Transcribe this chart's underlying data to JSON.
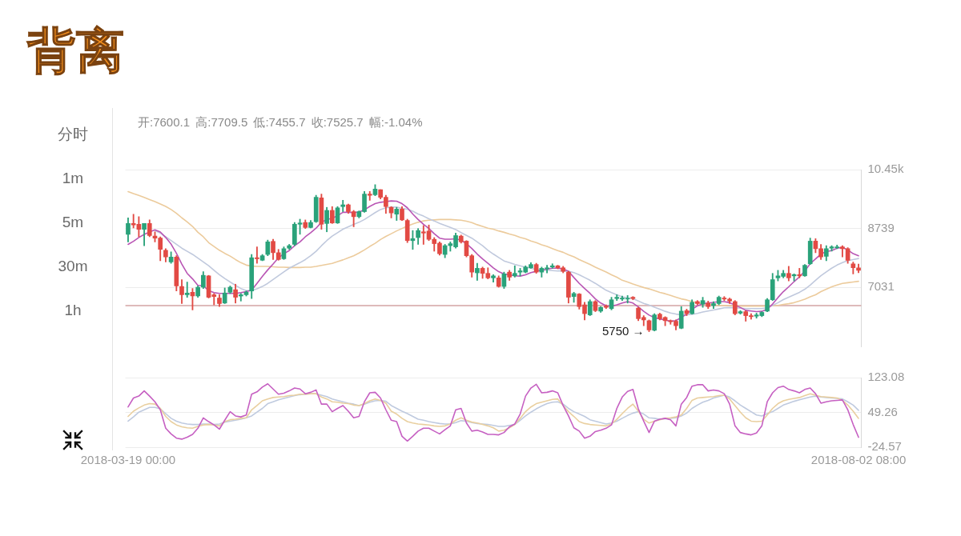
{
  "chart_data": [
    {
      "type": "candlestick",
      "title": "背离",
      "subtitle": "开:7600.1 高:7709.5 低:7455.7 收:7525.7 幅:-1.04%",
      "annotations": [
        "5750 →"
      ],
      "categories": [
        "2018-03-19 00:00",
        null,
        null,
        null,
        null,
        null,
        null,
        null,
        null,
        null,
        null,
        null,
        null,
        null,
        null,
        null,
        null,
        null,
        null,
        null,
        null,
        null,
        null,
        null,
        null,
        null,
        null,
        null,
        null,
        null,
        null,
        null,
        null,
        null,
        null,
        null,
        null,
        null,
        null,
        null,
        null,
        null,
        null,
        null,
        null,
        null,
        null,
        null,
        null,
        null,
        null,
        null,
        null,
        null,
        null,
        null,
        null,
        null,
        null,
        null,
        null,
        null,
        null,
        null,
        null,
        null,
        null,
        null,
        null,
        null,
        null,
        null,
        null,
        null,
        null,
        null,
        null,
        null,
        null,
        null,
        null,
        null,
        null,
        null,
        null,
        null,
        null,
        null,
        null,
        null,
        null,
        null,
        null,
        null,
        null,
        null,
        null,
        null,
        null,
        null,
        null,
        null,
        null,
        null,
        null,
        null,
        null,
        null,
        null,
        null,
        null,
        null,
        null,
        null,
        null,
        null,
        null,
        null,
        null,
        null,
        null,
        null,
        null,
        null,
        null,
        null,
        null,
        null,
        null,
        null,
        null,
        null,
        null,
        null,
        null,
        null,
        "2018-08-02 08:00"
      ],
      "ohlc": [
        [
          8572,
          9046,
          8353,
          8885
        ],
        [
          8885,
          9155,
          8754,
          8842
        ],
        [
          8864,
          9083,
          8499,
          8717
        ],
        [
          8717,
          8885,
          8243,
          8885
        ],
        [
          8885,
          8988,
          8499,
          8535
        ],
        [
          8520,
          8644,
          8353,
          8462
        ],
        [
          8462,
          8499,
          7805,
          8134
        ],
        [
          8112,
          8155,
          7769,
          7915
        ],
        [
          7769,
          8061,
          7732,
          7915
        ],
        [
          7915,
          7951,
          6929,
          7075
        ],
        [
          7060,
          7258,
          6564,
          6820
        ],
        [
          6820,
          7185,
          6747,
          6871
        ],
        [
          6893,
          7002,
          6382,
          6783
        ],
        [
          6783,
          7075,
          6747,
          7038
        ],
        [
          7038,
          7491,
          7002,
          7382
        ],
        [
          7367,
          7382,
          6725,
          6747
        ],
        [
          6820,
          6856,
          6528,
          6768
        ],
        [
          6725,
          6820,
          6476,
          6564
        ],
        [
          6579,
          7017,
          6564,
          6871
        ],
        [
          6893,
          7075,
          6856,
          7038
        ],
        [
          6966,
          7126,
          6579,
          6747
        ],
        [
          6783,
          6856,
          6637,
          6820
        ],
        [
          6820,
          6929,
          6783,
          6893
        ],
        [
          6929,
          7988,
          6710,
          7893
        ],
        [
          7893,
          8207,
          7732,
          7863
        ],
        [
          7820,
          7988,
          7805,
          7951
        ],
        [
          7988,
          8404,
          7951,
          8353
        ],
        [
          8367,
          8426,
          7842,
          8039
        ],
        [
          8039,
          8134,
          7820,
          7842
        ],
        [
          7863,
          8207,
          7842,
          8155
        ],
        [
          8170,
          8280,
          8134,
          8243
        ],
        [
          8280,
          8915,
          8243,
          8864
        ],
        [
          8864,
          9010,
          8572,
          8900
        ],
        [
          8915,
          8988,
          8739,
          8769
        ],
        [
          8769,
          8973,
          8754,
          8915
        ],
        [
          8937,
          9703,
          8915,
          9645
        ],
        [
          9630,
          9740,
          8717,
          8864
        ],
        [
          8885,
          9353,
          8644,
          9265
        ],
        [
          9265,
          9375,
          8885,
          8900
        ],
        [
          8900,
          9375,
          8885,
          9338
        ],
        [
          9375,
          9557,
          9229,
          9426
        ],
        [
          9426,
          9448,
          9177,
          9229
        ],
        [
          9229,
          9265,
          8790,
          9083
        ],
        [
          9083,
          9250,
          9046,
          9229
        ],
        [
          9229,
          9812,
          9207,
          9740
        ],
        [
          9740,
          9812,
          9557,
          9703
        ],
        [
          9718,
          10010,
          9688,
          9885
        ],
        [
          9864,
          9864,
          9594,
          9645
        ],
        [
          9645,
          9703,
          9177,
          9375
        ],
        [
          9353,
          9375,
          9046,
          9192
        ],
        [
          9155,
          9353,
          8973,
          9302
        ],
        [
          9302,
          9375,
          8973,
          8988
        ],
        [
          8973,
          9010,
          8331,
          8389
        ],
        [
          8389,
          8681,
          8134,
          8447
        ],
        [
          8477,
          8739,
          8280,
          8681
        ],
        [
          8644,
          8827,
          8280,
          8608
        ],
        [
          8666,
          8842,
          8389,
          8426
        ],
        [
          8426,
          8477,
          8082,
          8301
        ],
        [
          8316,
          8353,
          7966,
          8009
        ],
        [
          7988,
          8280,
          7893,
          8243
        ],
        [
          8243,
          8353,
          8082,
          8301
        ],
        [
          8207,
          8608,
          8170,
          8535
        ],
        [
          8520,
          8550,
          8316,
          8353
        ],
        [
          8374,
          8389,
          7915,
          7951
        ],
        [
          7951,
          7988,
          7330,
          7476
        ],
        [
          7455,
          7732,
          7236,
          7586
        ],
        [
          7586,
          7622,
          7294,
          7440
        ],
        [
          7440,
          7601,
          7279,
          7309
        ],
        [
          7309,
          7404,
          7185,
          7367
        ],
        [
          7309,
          7367,
          7038,
          7060
        ],
        [
          7060,
          7476,
          7002,
          7425
        ],
        [
          7476,
          7528,
          7236,
          7330
        ],
        [
          7367,
          7659,
          7330,
          7440
        ],
        [
          7476,
          7586,
          7367,
          7513
        ],
        [
          7476,
          7659,
          7455,
          7622
        ],
        [
          7601,
          7747,
          7586,
          7696
        ],
        [
          7696,
          7732,
          7440,
          7476
        ],
        [
          7476,
          7622,
          7330,
          7586
        ],
        [
          7571,
          7674,
          7455,
          7601
        ],
        [
          7622,
          7717,
          7586,
          7659
        ],
        [
          7659,
          7674,
          7571,
          7601
        ],
        [
          7601,
          7644,
          7455,
          7498
        ],
        [
          7476,
          7498,
          6579,
          6747
        ],
        [
          6768,
          6893,
          6600,
          6856
        ],
        [
          6841,
          6856,
          6403,
          6476
        ],
        [
          6528,
          6600,
          6090,
          6272
        ],
        [
          6236,
          6674,
          6214,
          6622
        ],
        [
          6622,
          6652,
          6330,
          6360
        ],
        [
          6345,
          6476,
          6309,
          6455
        ],
        [
          6491,
          6528,
          6418,
          6455
        ],
        [
          6418,
          6747,
          6382,
          6674
        ],
        [
          6710,
          6820,
          6652,
          6747
        ],
        [
          6695,
          6783,
          6652,
          6725
        ],
        [
          6695,
          6798,
          6579,
          6710
        ],
        [
          6747,
          6768,
          6674,
          6710
        ],
        [
          6433,
          6455,
          6068,
          6126
        ],
        [
          6163,
          6214,
          5922,
          6090
        ],
        [
          6068,
          6090,
          5750,
          5800
        ],
        [
          5790,
          6272,
          5770,
          6236
        ],
        [
          6257,
          6287,
          6090,
          6126
        ],
        [
          6163,
          6184,
          5922,
          6068
        ],
        [
          6068,
          6090,
          5965,
          6038
        ],
        [
          6053,
          6090,
          5800,
          5922
        ],
        [
          5849,
          6476,
          5834,
          6345
        ],
        [
          6360,
          6403,
          6214,
          6272
        ],
        [
          6272,
          6674,
          6257,
          6600
        ],
        [
          6622,
          6652,
          6528,
          6564
        ],
        [
          6549,
          6747,
          6455,
          6652
        ],
        [
          6579,
          6637,
          6418,
          6476
        ],
        [
          6506,
          6622,
          6418,
          6564
        ],
        [
          6564,
          6783,
          6528,
          6747
        ],
        [
          6725,
          6768,
          6652,
          6695
        ],
        [
          6695,
          6725,
          6564,
          6637
        ],
        [
          6622,
          6652,
          6236,
          6272
        ],
        [
          6287,
          6360,
          6257,
          6330
        ],
        [
          6330,
          6360,
          6053,
          6214
        ],
        [
          6214,
          6272,
          6111,
          6184
        ],
        [
          6199,
          6287,
          6141,
          6236
        ],
        [
          6214,
          6330,
          6184,
          6309
        ],
        [
          6345,
          6710,
          6330,
          6674
        ],
        [
          6674,
          7440,
          6652,
          7258
        ],
        [
          7309,
          7528,
          7221,
          7367
        ],
        [
          7352,
          7528,
          7309,
          7440
        ],
        [
          7440,
          7644,
          7221,
          7309
        ],
        [
          7367,
          7425,
          7221,
          7404
        ],
        [
          7404,
          7586,
          7309,
          7367
        ],
        [
          7367,
          7696,
          7352,
          7674
        ],
        [
          7717,
          8462,
          7696,
          8374
        ],
        [
          8374,
          8447,
          8039,
          8155
        ],
        [
          8155,
          8280,
          7842,
          7915
        ],
        [
          7936,
          8243,
          7805,
          8155
        ],
        [
          8170,
          8243,
          8082,
          8207
        ],
        [
          8185,
          8258,
          8155,
          8207
        ],
        [
          8207,
          8243,
          7915,
          8155
        ],
        [
          8155,
          8185,
          7732,
          7820
        ],
        [
          7717,
          7769,
          7425,
          7605
        ],
        [
          7600.1,
          7709.5,
          7455.7,
          7525.7
        ]
      ],
      "colors": [
        "#2aa27a",
        "#e24a44",
        "#e24a44",
        "#2aa27a",
        "#e24a44",
        "#e24a44",
        "#e24a44",
        "#e24a44",
        "#2aa27a",
        "#e24a44",
        "#e24a44",
        "#2aa27a",
        "#e24a44",
        "#2aa27a",
        "#2aa27a",
        "#e24a44",
        "#e24a44",
        "#e24a44",
        "#2aa27a",
        "#2aa27a",
        "#e24a44",
        "#2aa27a",
        "#2aa27a",
        "#2aa27a",
        "#e24a44",
        "#2aa27a",
        "#2aa27a",
        "#e24a44",
        "#e24a44",
        "#2aa27a",
        "#2aa27a",
        "#2aa27a",
        "#2aa27a",
        "#e24a44",
        "#2aa27a",
        "#2aa27a",
        "#e24a44",
        "#2aa27a",
        "#e24a44",
        "#2aa27a",
        "#2aa27a",
        "#e24a44",
        "#e24a44",
        "#2aa27a",
        "#2aa27a",
        "#e24a44",
        "#2aa27a",
        "#e24a44",
        "#e24a44",
        "#e24a44",
        "#2aa27a",
        "#e24a44",
        "#e24a44",
        "#2aa27a",
        "#2aa27a",
        "#e24a44",
        "#e24a44",
        "#e24a44",
        "#e24a44",
        "#2aa27a",
        "#2aa27a",
        "#2aa27a",
        "#e24a44",
        "#e24a44",
        "#e24a44",
        "#2aa27a",
        "#e24a44",
        "#e24a44",
        "#2aa27a",
        "#e24a44",
        "#2aa27a",
        "#e24a44",
        "#2aa27a",
        "#2aa27a",
        "#2aa27a",
        "#2aa27a",
        "#e24a44",
        "#2aa27a",
        "#2aa27a",
        "#2aa27a",
        "#e24a44",
        "#e24a44",
        "#e24a44",
        "#2aa27a",
        "#e24a44",
        "#e24a44",
        "#2aa27a",
        "#e24a44",
        "#2aa27a",
        "#e24a44",
        "#2aa27a",
        "#2aa27a",
        "#2aa27a",
        "#2aa27a",
        "#e24a44",
        "#e24a44",
        "#e24a44",
        "#e24a44",
        "#2aa27a",
        "#e24a44",
        "#e24a44",
        "#e24a44",
        "#e24a44",
        "#2aa27a",
        "#e24a44",
        "#2aa27a",
        "#e24a44",
        "#2aa27a",
        "#e24a44",
        "#2aa27a",
        "#2aa27a",
        "#e24a44",
        "#e24a44",
        "#e24a44",
        "#2aa27a",
        "#e24a44",
        "#e24a44",
        "#2aa27a",
        "#2aa27a",
        "#2aa27a",
        "#2aa27a",
        "#2aa27a",
        "#2aa27a",
        "#e24a44",
        "#2aa27a",
        "#e24a44",
        "#2aa27a",
        "#2aa27a",
        "#e24a44",
        "#e24a44",
        "#2aa27a",
        "#2aa27a",
        "#2aa27a",
        "#e24a44",
        "#e24a44",
        "#e24a44",
        "#e24a44"
      ],
      "series": [
        {
          "type": "line",
          "color": "#b955b4",
          "values": [
            8280,
            8370,
            8480,
            8570,
            8640,
            8700,
            8640,
            8480,
            8290,
            8020,
            7710,
            7440,
            7280,
            7090,
            7080,
            6940,
            6880,
            6860,
            6860,
            6860,
            6860,
            6880,
            6910,
            6950,
            7150,
            7350,
            7540,
            7710,
            7890,
            8010,
            8100,
            8240,
            8350,
            8500,
            8620,
            8750,
            8920,
            9000,
            9040,
            9110,
            9210,
            9210,
            9200,
            9220,
            9280,
            9380,
            9460,
            9500,
            9520,
            9540,
            9530,
            9460,
            9340,
            9160,
            9000,
            8860,
            8740,
            8590,
            8460,
            8430,
            8430,
            8440,
            8400,
            8300,
            8160,
            8000,
            7860,
            7730,
            7600,
            7490,
            7420,
            7400,
            7370,
            7360,
            7400,
            7460,
            7500,
            7530,
            7560,
            7590,
            7590,
            7570,
            7500,
            7320,
            7150,
            7000,
            6860,
            6700,
            6580,
            6500,
            6490,
            6530,
            6580,
            6620,
            6580,
            6470,
            6340,
            6230,
            6160,
            6120,
            6090,
            6050,
            6070,
            6160,
            6260,
            6400,
            6500,
            6560,
            6580,
            6600,
            6620,
            6620,
            6590,
            6520,
            6450,
            6370,
            6350,
            6330,
            6340,
            6400,
            6550,
            6740,
            6910,
            7050,
            7200,
            7340,
            7510,
            7720,
            7860,
            8000,
            8070,
            8100,
            8170,
            8190,
            8120,
            8010,
            7950
          ]
        },
        {
          "type": "line",
          "color": "#c0c9dd",
          "values": [
            null,
            null,
            null,
            null,
            null,
            8680,
            8610,
            8500,
            8390,
            8280,
            8170,
            8080,
            7990,
            7880,
            7770,
            7660,
            7530,
            7400,
            7290,
            7190,
            7090,
            7000,
            6940,
            6940,
            6990,
            7060,
            7150,
            7260,
            7370,
            7480,
            7590,
            7670,
            7750,
            7840,
            7950,
            8080,
            8240,
            8390,
            8520,
            8620,
            8720,
            8790,
            8860,
            8920,
            9000,
            9100,
            9200,
            9290,
            9340,
            9360,
            9360,
            9320,
            9300,
            9240,
            9160,
            9100,
            9020,
            8960,
            8890,
            8830,
            8770,
            8710,
            8620,
            8540,
            8460,
            8350,
            8240,
            8110,
            8000,
            7900,
            7800,
            7750,
            7700,
            7660,
            7620,
            7590,
            7550,
            7540,
            7530,
            7520,
            7510,
            7510,
            7500,
            7460,
            7400,
            7320,
            7240,
            7150,
            7050,
            6950,
            6880,
            6820,
            6760,
            6730,
            6710,
            6640,
            6570,
            6520,
            6460,
            6400,
            6340,
            6290,
            6260,
            6240,
            6240,
            6250,
            6280,
            6320,
            6350,
            6380,
            6410,
            6440,
            6450,
            6440,
            6430,
            6420,
            6420,
            6420,
            6420,
            6440,
            6510,
            6590,
            6680,
            6750,
            6820,
            6890,
            6980,
            7100,
            7240,
            7370,
            7480,
            7590,
            7680,
            7750,
            7810,
            7840,
            7870
          ]
        },
        {
          "type": "line",
          "color": "#eccb9c",
          "values": [
            9810,
            9750,
            9700,
            9640,
            9580,
            9520,
            9450,
            9380,
            9290,
            9180,
            9050,
            8930,
            8800,
            8630,
            8500,
            8330,
            8220,
            8110,
            8020,
            7940,
            7840,
            7750,
            7680,
            7650,
            7640,
            7640,
            7640,
            7630,
            7620,
            7620,
            7610,
            7610,
            7610,
            7620,
            7620,
            7640,
            7670,
            7700,
            7730,
            7780,
            7830,
            7890,
            7950,
            8030,
            8120,
            8220,
            8310,
            8420,
            8510,
            8590,
            8670,
            8740,
            8810,
            8870,
            8920,
            8960,
            8980,
            8990,
            9000,
            9000,
            9000,
            8990,
            8980,
            8950,
            8910,
            8850,
            8800,
            8750,
            8720,
            8670,
            8630,
            8580,
            8540,
            8480,
            8440,
            8380,
            8330,
            8270,
            8220,
            8160,
            8100,
            8050,
            7980,
            7920,
            7840,
            7770,
            7700,
            7620,
            7550,
            7480,
            7400,
            7330,
            7240,
            7190,
            7130,
            7080,
            7030,
            6990,
            6940,
            6890,
            6850,
            6800,
            6750,
            6700,
            6670,
            6620,
            6590,
            6560,
            6540,
            6530,
            6510,
            6510,
            6500,
            6490,
            6490,
            6490,
            6490,
            6490,
            6490,
            6490,
            6500,
            6510,
            6540,
            6560,
            6590,
            6640,
            6690,
            6760,
            6820,
            6910,
            6980,
            7050,
            7100,
            7150,
            7170,
            7190,
            7210
          ]
        }
      ],
      "ylim": [
        5323,
        10447
      ],
      "yticks": [
        {
          "value": 10447,
          "label": "10.45k"
        },
        8739,
        7031
      ],
      "grid": "y",
      "tick_labels": "y",
      "ref_lines": [
        {
          "axis": "y",
          "value": 6506,
          "color": "#d3a3a3"
        }
      ]
    },
    {
      "type": "line",
      "categories": [
        "2018-03-19 00:00",
        null,
        null,
        null,
        null,
        null,
        null,
        null,
        null,
        null,
        null,
        null,
        null,
        null,
        null,
        null,
        null,
        null,
        null,
        null,
        null,
        null,
        null,
        null,
        null,
        null,
        null,
        null,
        null,
        null,
        null,
        null,
        null,
        null,
        null,
        null,
        null,
        null,
        null,
        null,
        null,
        null,
        null,
        null,
        null,
        null,
        null,
        null,
        null,
        null,
        null,
        null,
        null,
        null,
        null,
        null,
        null,
        null,
        null,
        null,
        null,
        null,
        null,
        null,
        null,
        null,
        null,
        null,
        null,
        null,
        null,
        null,
        null,
        null,
        null,
        null,
        null,
        null,
        null,
        null,
        null,
        null,
        null,
        null,
        null,
        null,
        null,
        null,
        null,
        null,
        null,
        null,
        null,
        null,
        null,
        null,
        null,
        null,
        null,
        null,
        null,
        null,
        null,
        null,
        null,
        null,
        null,
        null,
        null,
        null,
        null,
        null,
        null,
        null,
        null,
        null,
        null,
        null,
        null,
        null,
        null,
        null,
        null,
        null,
        null,
        null,
        null,
        null,
        null,
        null,
        null,
        null,
        null,
        null,
        null,
        null,
        "2018-08-02 08:00"
      ],
      "series": [
        {
          "color": "#c660c2",
          "values": [
            61,
            80,
            84,
            95,
            84,
            72,
            55,
            16,
            4,
            -5,
            -7,
            -3,
            3,
            16,
            38,
            30,
            23,
            14,
            33,
            51,
            42,
            40,
            44,
            88,
            93,
            103,
            110,
            99,
            88,
            90,
            95,
            101,
            99,
            89,
            92,
            97,
            67,
            67,
            51,
            58,
            64,
            52,
            38,
            41,
            72,
            91,
            92,
            80,
            55,
            33,
            30,
            -1,
            -11,
            -1,
            10,
            16,
            16,
            10,
            4,
            13,
            21,
            55,
            58,
            27,
            10,
            12,
            8,
            3,
            3,
            2,
            7,
            19,
            25,
            46,
            84,
            101,
            109,
            91,
            92,
            95,
            91,
            64,
            42,
            17,
            10,
            -5,
            -1,
            9,
            12,
            16,
            23,
            58,
            82,
            94,
            98,
            57,
            31,
            7,
            31,
            35,
            37,
            34,
            21,
            67,
            81,
            105,
            108,
            108,
            95,
            97,
            95,
            89,
            67,
            21,
            7,
            4,
            2,
            6,
            21,
            72,
            91,
            102,
            105,
            98,
            95,
            91,
            98,
            101,
            89,
            69,
            72,
            74,
            75,
            76,
            55,
            24,
            -3
          ]
        },
        {
          "color": "#e9cf9f",
          "values": [
            41,
            52,
            59,
            65,
            68,
            67,
            58,
            41,
            30,
            23,
            19,
            17,
            16,
            20,
            23,
            24,
            23,
            21,
            30,
            34,
            35,
            37,
            38,
            55,
            64,
            74,
            78,
            81,
            82,
            83,
            85,
            86,
            88,
            88,
            89,
            89,
            82,
            78,
            72,
            71,
            69,
            68,
            65,
            64,
            68,
            74,
            78,
            75,
            69,
            52,
            46,
            37,
            30,
            27,
            25,
            24,
            23,
            21,
            20,
            21,
            25,
            33,
            38,
            33,
            29,
            27,
            24,
            21,
            17,
            10,
            12,
            17,
            24,
            37,
            51,
            61,
            68,
            71,
            74,
            77,
            78,
            64,
            51,
            41,
            30,
            26,
            24,
            23,
            22,
            21,
            25,
            35,
            47,
            58,
            67,
            52,
            35,
            27,
            31,
            34,
            37,
            38,
            40,
            44,
            58,
            75,
            80,
            81,
            82,
            83,
            85,
            86,
            78,
            64,
            50,
            38,
            31,
            30,
            31,
            44,
            58,
            68,
            74,
            77,
            79,
            81,
            85,
            89,
            86,
            83,
            82,
            81,
            80,
            75,
            65,
            52,
            37
          ]
        },
        {
          "color": "#bfcadf",
          "values": [
            31,
            40,
            50,
            55,
            60,
            60,
            57,
            47,
            37,
            31,
            27,
            25,
            24,
            24,
            25,
            25,
            24,
            25,
            29,
            31,
            33,
            35,
            38,
            42,
            50,
            58,
            68,
            72,
            76,
            79,
            82,
            85,
            87,
            88,
            89,
            89,
            86,
            83,
            78,
            75,
            72,
            69,
            67,
            64,
            67,
            71,
            74,
            75,
            73,
            64,
            58,
            52,
            47,
            41,
            35,
            33,
            30,
            28,
            26,
            25,
            25,
            28,
            32,
            31,
            28,
            26,
            25,
            24,
            22,
            20,
            20,
            22,
            24,
            33,
            42,
            50,
            57,
            63,
            68,
            71,
            72,
            67,
            58,
            51,
            46,
            41,
            34,
            31,
            28,
            25,
            27,
            31,
            37,
            43,
            48,
            51,
            46,
            38,
            37,
            35,
            36,
            37,
            38,
            42,
            48,
            58,
            65,
            71,
            75,
            80,
            83,
            86,
            82,
            74,
            65,
            58,
            51,
            44,
            42,
            47,
            51,
            58,
            65,
            69,
            73,
            76,
            79,
            82,
            84,
            82,
            81,
            80,
            79,
            78,
            72,
            65,
            54
          ]
        }
      ],
      "ylim": [
        -24.57,
        123.08
      ],
      "yticks": [
        123.08,
        49.26,
        -24.57
      ],
      "grid": "y"
    },
    {
      "type": "other",
      "annotations": [
        "分时",
        "1m",
        "5m",
        "30m",
        "1h"
      ]
    }
  ]
}
